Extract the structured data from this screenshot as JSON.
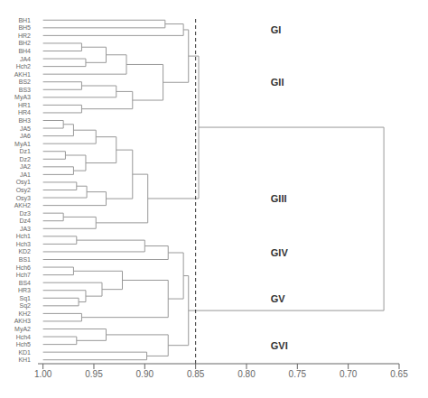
{
  "chart_data": {
    "type": "dendrogram",
    "color": "#999999",
    "leaf_height": 1.0,
    "xlim": [
      1.005,
      0.65
    ],
    "xticks": [
      {
        "value": 1.0,
        "label": "1.00"
      },
      0.95,
      {
        "value": 0.9,
        "label": "0.90"
      },
      0.85,
      {
        "value": 0.8,
        "label": "0.80"
      },
      0.75,
      {
        "value": 0.7,
        "label": "0.70"
      },
      0.65
    ],
    "reference_x": 0.85,
    "group_label_x": 0.778,
    "tree": {
      "height": 0.665,
      "children": [
        {
          "height": 0.847,
          "children": [
            {
              "height": 0.857,
              "children": [
                {
                  "height": 0.862,
                  "group": "GI",
                  "children": [
                    {
                      "height": 0.88,
                      "children": [
                        "BH1",
                        "BH5"
                      ]
                    },
                    "HR2"
                  ]
                },
                {
                  "height": 0.882,
                  "group": "GII",
                  "children": [
                    {
                      "height": 0.918,
                      "children": [
                        {
                          "height": 0.938,
                          "children": [
                            {
                              "height": 0.962,
                              "children": [
                                "BH2",
                                "BH4"
                              ]
                            },
                            {
                              "height": 0.958,
                              "children": [
                                "JA4",
                                "Hch2"
                              ]
                            }
                          ]
                        },
                        "AKH1"
                      ]
                    },
                    {
                      "height": 0.912,
                      "children": [
                        {
                          "height": 0.928,
                          "children": [
                            {
                              "height": 0.962,
                              "children": [
                                "BS2",
                                "BS3"
                              ]
                            },
                            "MyA3"
                          ]
                        },
                        {
                          "height": 0.962,
                          "children": [
                            "HR1",
                            "HR4"
                          ]
                        }
                      ]
                    }
                  ]
                }
              ]
            },
            {
              "height": 0.897,
              "group": "GIII",
              "children": [
                {
                  "height": 0.912,
                  "children": [
                    {
                      "height": 0.928,
                      "children": [
                        {
                          "height": 0.948,
                          "children": [
                            {
                              "height": 0.97,
                              "children": [
                                {
                                  "height": 0.98,
                                  "children": [
                                    "BH3",
                                    "JA5"
                                  ]
                                },
                                "JA6"
                              ]
                            },
                            "MyA1"
                          ]
                        },
                        {
                          "height": 0.958,
                          "children": [
                            {
                              "height": 0.978,
                              "children": [
                                "Dz1",
                                "Dz2"
                              ]
                            },
                            {
                              "height": 0.97,
                              "children": [
                                "JA2",
                                "JA1"
                              ]
                            }
                          ]
                        }
                      ]
                    },
                    {
                      "height": 0.938,
                      "children": [
                        {
                          "height": 0.957,
                          "children": [
                            {
                              "height": 0.967,
                              "children": [
                                "Osy1",
                                "Osy2"
                              ]
                            },
                            "Osy3"
                          ]
                        },
                        "AKH2"
                      ]
                    }
                  ]
                },
                {
                  "height": 0.948,
                  "children": [
                    {
                      "height": 0.98,
                      "children": [
                        "Dz3",
                        "Dz4"
                      ]
                    },
                    "JA3"
                  ]
                }
              ]
            }
          ]
        },
        {
          "height": 0.857,
          "children": [
            {
              "height": 0.862,
              "children": [
                {
                  "height": 0.877,
                  "group": "GIV",
                  "children": [
                    {
                      "height": 0.9,
                      "children": [
                        {
                          "height": 0.967,
                          "children": [
                            "Hch1",
                            "Hch3"
                          ]
                        },
                        "KD2"
                      ]
                    },
                    "BS1"
                  ]
                },
                {
                  "height": 0.877,
                  "group": "GV",
                  "children": [
                    {
                      "height": 0.922,
                      "children": [
                        {
                          "height": 0.97,
                          "children": [
                            "Hch6",
                            "Hch7"
                          ]
                        },
                        {
                          "height": 0.942,
                          "children": [
                            "BS4",
                            {
                              "height": 0.958,
                              "children": [
                                "HR3",
                                {
                                  "height": 0.965,
                                  "children": [
                                    "Sq1",
                                    "Sq2"
                                  ]
                                }
                              ]
                            }
                          ]
                        }
                      ]
                    },
                    {
                      "height": 0.962,
                      "children": [
                        "KH2",
                        "AKH3"
                      ]
                    }
                  ]
                }
              ]
            },
            {
              "height": 0.877,
              "group": "GVI",
              "children": [
                {
                  "height": 0.938,
                  "children": [
                    "MyA2",
                    {
                      "height": 0.967,
                      "children": [
                        "Hch4",
                        "Hch5"
                      ]
                    }
                  ]
                },
                {
                  "height": 0.898,
                  "children": [
                    "KD1",
                    "KH1"
                  ]
                }
              ]
            }
          ]
        }
      ]
    }
  }
}
